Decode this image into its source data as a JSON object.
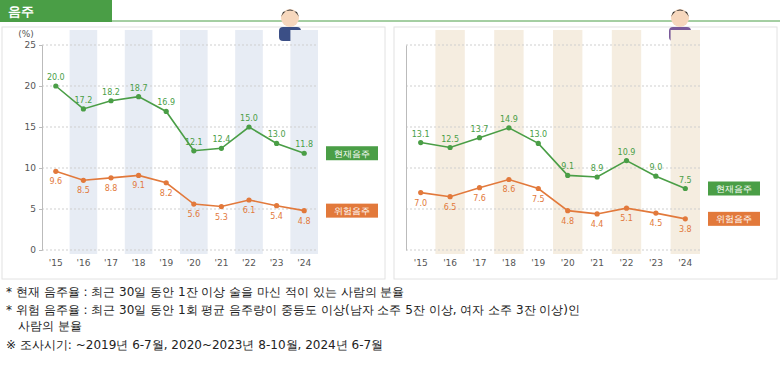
{
  "header": "음주",
  "chart_data": [
    {
      "type": "line",
      "categories": [
        "'15",
        "'16",
        "'17",
        "'18",
        "'19",
        "'20",
        "'21",
        "'22",
        "'23",
        "'24"
      ],
      "series": [
        {
          "name": "현재음주",
          "color": "#4a9e46",
          "values": [
            20.0,
            17.2,
            18.2,
            18.7,
            16.9,
            12.1,
            12.4,
            15.0,
            13.0,
            11.8
          ],
          "value_labels": [
            "20.0",
            "17.2",
            "18.2",
            "18.7",
            "16.9",
            "12.1",
            "12.4",
            "15.0",
            "13.0",
            "11.8"
          ]
        },
        {
          "name": "위험음주",
          "color": "#e2793b",
          "values": [
            9.6,
            8.5,
            8.8,
            9.1,
            8.2,
            5.6,
            5.3,
            6.1,
            5.4,
            4.8
          ],
          "value_labels": [
            "9.6",
            "8.5",
            "8.8",
            "9.1",
            "8.2",
            "5.6",
            "5.3",
            "6.1",
            "5.4",
            "4.8"
          ]
        }
      ],
      "ylim": [
        0,
        25
      ],
      "yticks": [
        0,
        5,
        10,
        15,
        20,
        25
      ],
      "ylabel": "(%)",
      "grid": true,
      "legend": "right",
      "data_labels": true,
      "marker": "circle",
      "tick_labels": true
    },
    {
      "type": "line",
      "categories": [
        "'15",
        "'16",
        "'17",
        "'18",
        "'19",
        "'20",
        "'21",
        "'22",
        "'23",
        "'24"
      ],
      "series": [
        {
          "name": "현재음주",
          "color": "#4a9e46",
          "values": [
            13.1,
            12.5,
            13.7,
            14.9,
            13.0,
            9.1,
            8.9,
            10.9,
            9.0,
            7.5
          ],
          "value_labels": [
            "13.1",
            "12.5",
            "13.7",
            "14.9",
            "13.0",
            "9.1",
            "8.9",
            "10.9",
            "9.0",
            "7.5"
          ]
        },
        {
          "name": "위험음주",
          "color": "#e2793b",
          "values": [
            7.0,
            6.5,
            7.6,
            8.6,
            7.5,
            4.8,
            4.4,
            5.1,
            4.5,
            3.8
          ],
          "value_labels": [
            "7.0",
            "6.5",
            "7.6",
            "8.6",
            "7.5",
            "4.8",
            "4.4",
            "5.1",
            "4.5",
            "3.8"
          ]
        }
      ],
      "ylim": [
        0,
        25
      ],
      "yticks": [
        0,
        5,
        10,
        15,
        20,
        25
      ],
      "grid": true,
      "legend": "right",
      "data_labels": true,
      "marker": "circle",
      "tick_labels": "x"
    }
  ],
  "notes": [
    "* 현재 음주율 : 최근 30일 동안 1잔 이상 술을 마신 적이 있는 사람의 분율",
    "* 위험 음주율 : 최근 30일 동안 1회 평균 음주량이 중등도 이상(남자 소주 5잔 이상, 여자 소주 3잔 이상)인",
    "사람의 분율",
    "※ 조사시기: ~2019년 6-7월, 2020~2023년 8-10월, 2024년 6-7월"
  ]
}
